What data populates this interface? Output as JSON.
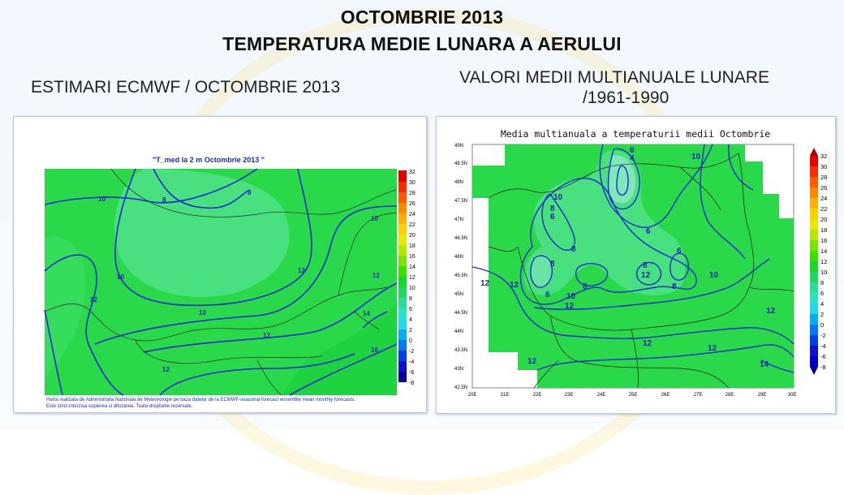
{
  "header": {
    "title_line1": "OCTOMBRIE 2013",
    "title_line2": "TEMPERATURA MEDIE LUNARA A AERULUI",
    "left_subtitle": "ESTIMARI ECMWF / OCTOMBRIE 2013",
    "right_subtitle_line1": "VALORI MEDII MULTIANUALE LUNARE",
    "right_subtitle_line2": "/1961-1990"
  },
  "left_map": {
    "title": "\"T_med la 2 m Octombrie 2013 \"",
    "note_line1": "Harta realizata de Administratia Nationala de Meteorologie pe baza datelor de la ECMWF-seasonal forecast ensemble mean monthly forecasts.",
    "note_line2": "Este strict interzisa copierea si difuzarea. Toate drepturile rezervate.",
    "colorbar_labels": [
      "32",
      "30",
      "28",
      "26",
      "24",
      "22",
      "20",
      "18",
      "16",
      "14",
      "12",
      "10",
      "8",
      "6",
      "4",
      "2",
      "0",
      "-2",
      "-4",
      "-6",
      "-8"
    ],
    "contour_labels": [
      "10",
      "8",
      "8",
      "10",
      "10",
      "12",
      "12",
      "12",
      "10",
      "14",
      "16",
      "12",
      "12"
    ]
  },
  "right_map": {
    "title": "Media multianuala a temperaturii medii Octombrie",
    "lat_labels": [
      "49N",
      "48.5N",
      "48N",
      "47.5N",
      "47N",
      "46.5N",
      "46N",
      "45.5N",
      "45N",
      "44.5N",
      "44N",
      "43.5N",
      "43N",
      "42.5N"
    ],
    "lon_labels": [
      "20E",
      "21E",
      "22E",
      "23E",
      "24E",
      "25E",
      "26E",
      "27E",
      "28E",
      "29E",
      "30E"
    ],
    "colorbar_labels": [
      "32",
      "30",
      "28",
      "26",
      "24",
      "22",
      "20",
      "18",
      "16",
      "14",
      "12",
      "10",
      "8",
      "6",
      "4",
      "2",
      "0",
      "-2",
      "-4",
      "-6",
      "-8"
    ],
    "contour_labels": [
      "6",
      "4",
      "10",
      "10",
      "8",
      "6",
      "8",
      "6",
      "6",
      "8",
      "8",
      "8",
      "12",
      "12",
      "6",
      "10",
      "8",
      "10",
      "12",
      "12",
      "12",
      "12",
      "12",
      "14",
      "12"
    ]
  },
  "colors": {
    "map_green": "#2ad94a",
    "map_light": "#49e07f",
    "contour": "#1b2bd0",
    "border": "#303030"
  }
}
